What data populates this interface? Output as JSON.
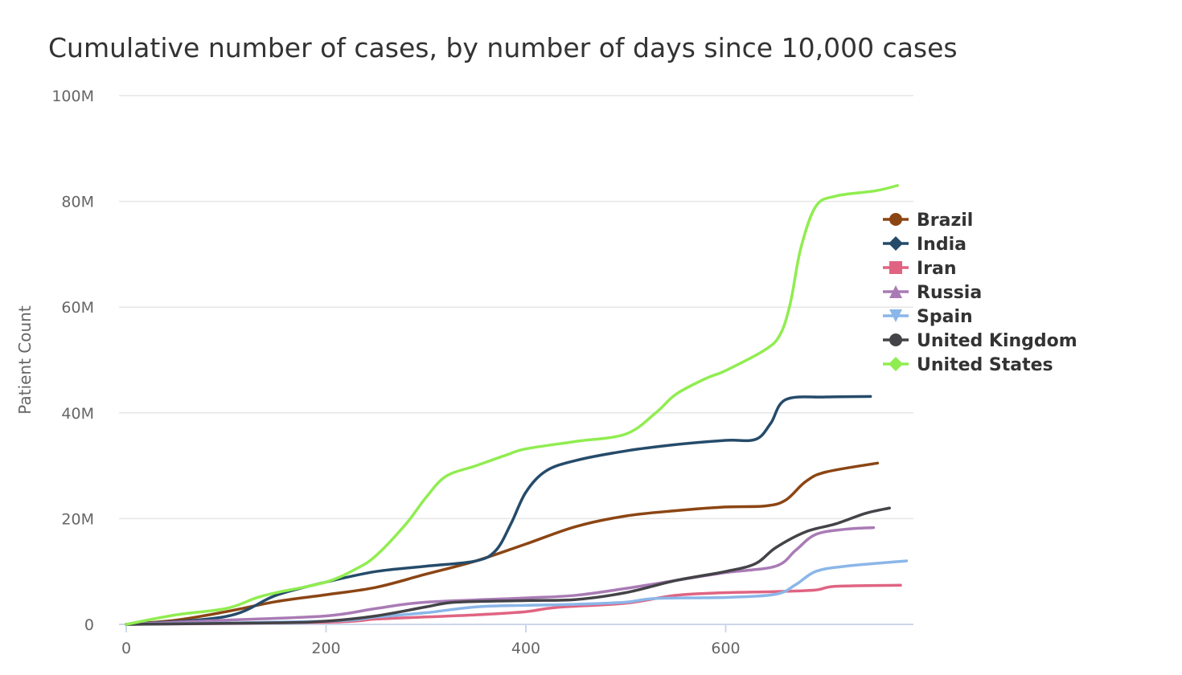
{
  "chart_data": {
    "type": "line",
    "title": "Cumulative number of cases, by number of days since 10,000 cases",
    "xlabel": "",
    "ylabel": "Patient Count",
    "xlim": [
      0,
      790
    ],
    "ylim": [
      0,
      100000000
    ],
    "x_ticks": [
      0,
      200,
      400,
      600
    ],
    "x_tick_labels": [
      "0",
      "200",
      "400",
      "600"
    ],
    "y_ticks": [
      0,
      20000000,
      40000000,
      60000000,
      80000000,
      100000000
    ],
    "y_tick_labels": [
      "0",
      "20M",
      "40M",
      "60M",
      "80M",
      "100M"
    ],
    "grid": "horizontal",
    "legend_position": "right",
    "series": [
      {
        "name": "Brazil",
        "color": "#8B4513",
        "marker": "circle",
        "points": [
          [
            0,
            0
          ],
          [
            50,
            0.8
          ],
          [
            100,
            2.4
          ],
          [
            150,
            4.3
          ],
          [
            200,
            5.6
          ],
          [
            250,
            7.0
          ],
          [
            300,
            9.5
          ],
          [
            350,
            12.0
          ],
          [
            400,
            15.2
          ],
          [
            450,
            18.5
          ],
          [
            500,
            20.5
          ],
          [
            550,
            21.5
          ],
          [
            600,
            22.2
          ],
          [
            640,
            22.4
          ],
          [
            660,
            23.5
          ],
          [
            680,
            27.0
          ],
          [
            700,
            28.8
          ],
          [
            752,
            30.5
          ]
        ]
      },
      {
        "name": "India",
        "color": "#254B6A",
        "marker": "diamond",
        "points": [
          [
            0,
            0
          ],
          [
            100,
            1.5
          ],
          [
            150,
            5.5
          ],
          [
            200,
            8.0
          ],
          [
            250,
            10.0
          ],
          [
            300,
            11.0
          ],
          [
            350,
            12.0
          ],
          [
            370,
            14.0
          ],
          [
            385,
            19.0
          ],
          [
            400,
            25.0
          ],
          [
            420,
            29.0
          ],
          [
            450,
            31.0
          ],
          [
            500,
            32.8
          ],
          [
            550,
            34.0
          ],
          [
            600,
            34.8
          ],
          [
            630,
            35.0
          ],
          [
            645,
            38.0
          ],
          [
            660,
            42.5
          ],
          [
            700,
            43.0
          ],
          [
            745,
            43.1
          ]
        ]
      },
      {
        "name": "Iran",
        "color": "#E06482",
        "marker": "square",
        "points": [
          [
            0,
            0
          ],
          [
            200,
            0.4
          ],
          [
            250,
            1.0
          ],
          [
            300,
            1.4
          ],
          [
            350,
            1.8
          ],
          [
            400,
            2.4
          ],
          [
            430,
            3.2
          ],
          [
            500,
            4.0
          ],
          [
            550,
            5.5
          ],
          [
            600,
            6.0
          ],
          [
            650,
            6.2
          ],
          [
            690,
            6.5
          ],
          [
            710,
            7.2
          ],
          [
            775,
            7.4
          ]
        ]
      },
      {
        "name": "Russia",
        "color": "#A97BB5",
        "marker": "triangle",
        "points": [
          [
            0,
            0
          ],
          [
            100,
            0.8
          ],
          [
            200,
            1.6
          ],
          [
            250,
            3.0
          ],
          [
            300,
            4.2
          ],
          [
            400,
            5.0
          ],
          [
            450,
            5.5
          ],
          [
            500,
            6.8
          ],
          [
            550,
            8.3
          ],
          [
            600,
            9.8
          ],
          [
            650,
            11.0
          ],
          [
            670,
            14.0
          ],
          [
            690,
            17.0
          ],
          [
            720,
            18.0
          ],
          [
            748,
            18.3
          ]
        ]
      },
      {
        "name": "Spain",
        "color": "#8BB6E8",
        "marker": "triangle-down",
        "points": [
          [
            0,
            0
          ],
          [
            200,
            0.6
          ],
          [
            250,
            1.4
          ],
          [
            300,
            2.2
          ],
          [
            350,
            3.3
          ],
          [
            400,
            3.6
          ],
          [
            450,
            3.8
          ],
          [
            500,
            4.2
          ],
          [
            530,
            4.9
          ],
          [
            600,
            5.1
          ],
          [
            650,
            5.7
          ],
          [
            670,
            7.5
          ],
          [
            690,
            10.0
          ],
          [
            720,
            11.0
          ],
          [
            781,
            12.0
          ]
        ]
      },
      {
        "name": "United Kingdom",
        "color": "#434348",
        "marker": "circle",
        "points": [
          [
            0,
            0
          ],
          [
            150,
            0.3
          ],
          [
            200,
            0.6
          ],
          [
            250,
            1.6
          ],
          [
            300,
            3.3
          ],
          [
            330,
            4.2
          ],
          [
            400,
            4.5
          ],
          [
            450,
            4.7
          ],
          [
            500,
            6.0
          ],
          [
            550,
            8.3
          ],
          [
            600,
            10.0
          ],
          [
            630,
            11.5
          ],
          [
            650,
            14.5
          ],
          [
            680,
            17.5
          ],
          [
            710,
            19.0
          ],
          [
            740,
            21.0
          ],
          [
            764,
            22.0
          ]
        ]
      },
      {
        "name": "United States",
        "color": "#90ED50",
        "marker": "diamond",
        "points": [
          [
            0,
            0
          ],
          [
            50,
            1.8
          ],
          [
            100,
            3.0
          ],
          [
            130,
            5.0
          ],
          [
            150,
            6.0
          ],
          [
            200,
            8.0
          ],
          [
            230,
            10.5
          ],
          [
            250,
            13.0
          ],
          [
            280,
            19.0
          ],
          [
            300,
            24.0
          ],
          [
            320,
            28.0
          ],
          [
            350,
            30.0
          ],
          [
            380,
            32.0
          ],
          [
            400,
            33.2
          ],
          [
            450,
            34.6
          ],
          [
            500,
            36.0
          ],
          [
            530,
            40.0
          ],
          [
            550,
            43.5
          ],
          [
            580,
            46.5
          ],
          [
            600,
            48.0
          ],
          [
            640,
            52.0
          ],
          [
            655,
            55.0
          ],
          [
            665,
            61.0
          ],
          [
            675,
            71.0
          ],
          [
            690,
            79.0
          ],
          [
            710,
            81.0
          ],
          [
            750,
            82.0
          ],
          [
            772,
            83.0
          ]
        ]
      }
    ],
    "value_unit": "millions of cases"
  }
}
